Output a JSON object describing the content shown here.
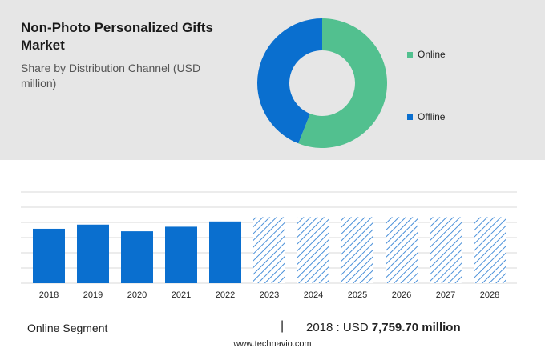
{
  "header": {
    "title": "Non-Photo Personalized Gifts Market",
    "subtitle": "Share by Distribution Channel (USD million)"
  },
  "chart_data": [
    {
      "type": "pie",
      "variant": "donut",
      "slices": [
        {
          "label": "Online",
          "value": 56,
          "color": "#52c08f"
        },
        {
          "label": "Offline",
          "value": 44,
          "color": "#0a6fcf"
        }
      ],
      "legend_position": "right"
    },
    {
      "type": "bar",
      "categories": [
        "2018",
        "2019",
        "2020",
        "2021",
        "2022",
        "2023",
        "2024",
        "2025",
        "2026",
        "2027",
        "2028"
      ],
      "values": [
        7759.7,
        8350,
        7400,
        8050,
        8800,
        null,
        null,
        null,
        null,
        null,
        null
      ],
      "forecast_categories": [
        "2023",
        "2024",
        "2025",
        "2026",
        "2027",
        "2028"
      ],
      "bar_color": "#0a6fcf",
      "forecast_color": "#4a90d9",
      "grid": true,
      "ylim": [
        0,
        13000
      ]
    }
  ],
  "footer": {
    "segment_label": "Online Segment",
    "separator": "|",
    "year_prefix": "2018 : USD ",
    "value": "7,759.70 million",
    "source": "www.technavio.com"
  }
}
